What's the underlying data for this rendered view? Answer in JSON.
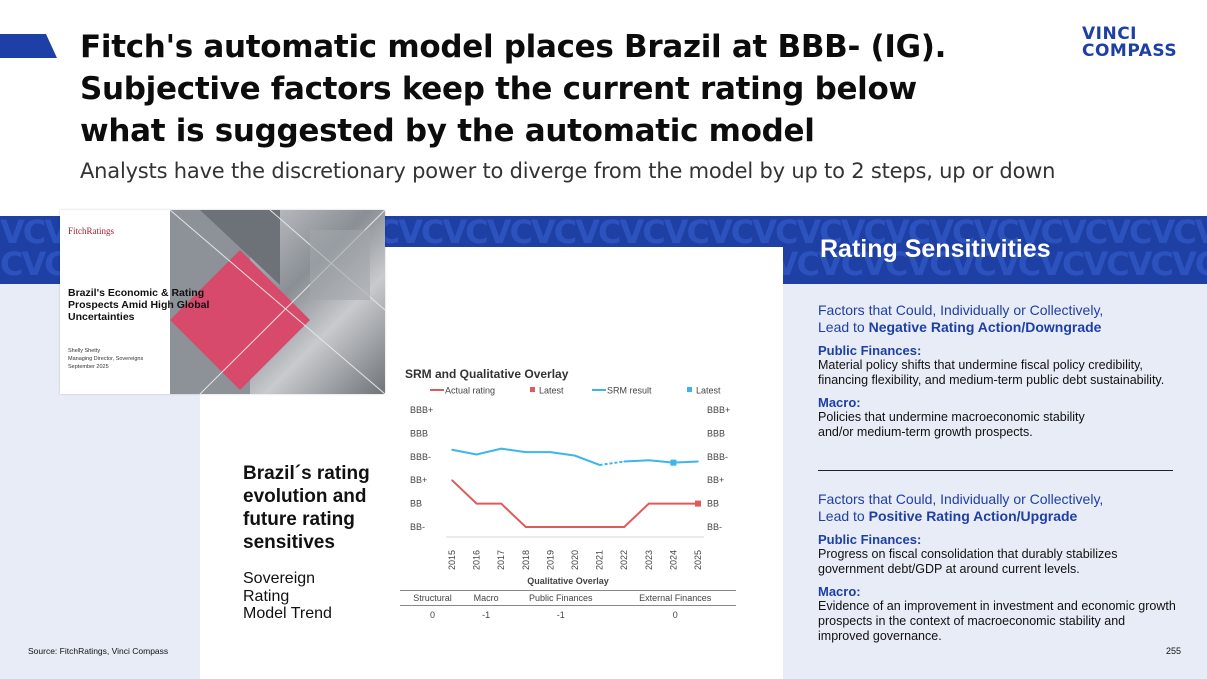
{
  "header": {
    "title_lines": [
      "Fitch's automatic model places Brazil at BBB- (IG).",
      "Subjective factors keep the current rating below",
      "what is suggested by the automatic model"
    ],
    "subtitle": "Analysts have the discretionary power to diverge from the model by up to 2 steps, up or down",
    "logo_lines": [
      "VINCI",
      "COMPASS"
    ],
    "accent_color": "#1d3fa6"
  },
  "cover": {
    "brand": "FitchRatings",
    "heading": "Brazil's Economic & Rating Prospects Amid High Global Uncertainties",
    "meta_lines": [
      "Shelly Shetty",
      "Managing Director, Sovereigns",
      "September 2025"
    ]
  },
  "left_panel": {
    "heading_lines": [
      "Brazil´s rating",
      "evolution and",
      "future rating",
      "sensitives"
    ],
    "trend_lines": [
      "Sovereign",
      "Rating",
      "Model Trend"
    ]
  },
  "chart_data": {
    "type": "line",
    "title": "SRM and Qualitative Overlay",
    "x": [
      "2015",
      "2016",
      "2017",
      "2018",
      "2019",
      "2020",
      "2021",
      "2022",
      "2023",
      "2024",
      "2025"
    ],
    "y_levels": [
      "BB-",
      "BB",
      "BB+",
      "BBB-",
      "BBB",
      "BBB+"
    ],
    "series": [
      {
        "name": "Actual rating",
        "color": "#e15a5a",
        "values": [
          2.0,
          1.0,
          1.0,
          0.0,
          0.0,
          0.0,
          0.0,
          0.0,
          1.0,
          1.0,
          1.0
        ]
      },
      {
        "name": "SRM result",
        "color": "#3bb5ee",
        "values": [
          3.3,
          3.1,
          3.35,
          3.2,
          3.2,
          3.05,
          2.65,
          2.8,
          2.85,
          2.75,
          2.8
        ]
      }
    ],
    "latest": [
      {
        "name": "Latest",
        "color": "#e15a5a",
        "x": "2025",
        "value": 1.0
      },
      {
        "name": "Latest",
        "color": "#3bb5ee",
        "x": "2024",
        "value": 2.75
      }
    ],
    "xlabel": "Qualitative Overlay",
    "overlay_table": {
      "headers": [
        "Structural",
        "Macro",
        "Public Finances",
        "External Finances"
      ],
      "values": [
        "0",
        "-1",
        "-1",
        "0"
      ]
    }
  },
  "rating_sensitivities": {
    "title": "Rating Sensitivities",
    "negative": {
      "head_line1": "Factors that Could, Individually or Collectively,",
      "head_prefix": "Lead to ",
      "head_bold": "Negative Rating Action/Downgrade",
      "items": [
        {
          "label": "Public Finances:",
          "text": "Material policy shifts that undermine fiscal policy credibility, financing flexibility, and medium-term public debt sustainability."
        },
        {
          "label": "Macro:",
          "text": "Policies that undermine macroeconomic stability and/or medium-term growth prospects."
        }
      ]
    },
    "positive": {
      "head_line1": "Factors that Could, Individually or Collectively,",
      "head_prefix": "Lead to ",
      "head_bold": "Positive Rating Action/Upgrade",
      "items": [
        {
          "label": "Public Finances:",
          "text": "Progress on fiscal consolidation that durably stabilizes government debt/GDP at around current levels."
        },
        {
          "label": "Macro:",
          "text": "Evidence of an improvement in investment and economic growth prospects in the context of macroeconomic stability and improved governance."
        }
      ]
    }
  },
  "footer": {
    "source": "Source: FitchRatings, Vinci Compass",
    "page": "255"
  }
}
